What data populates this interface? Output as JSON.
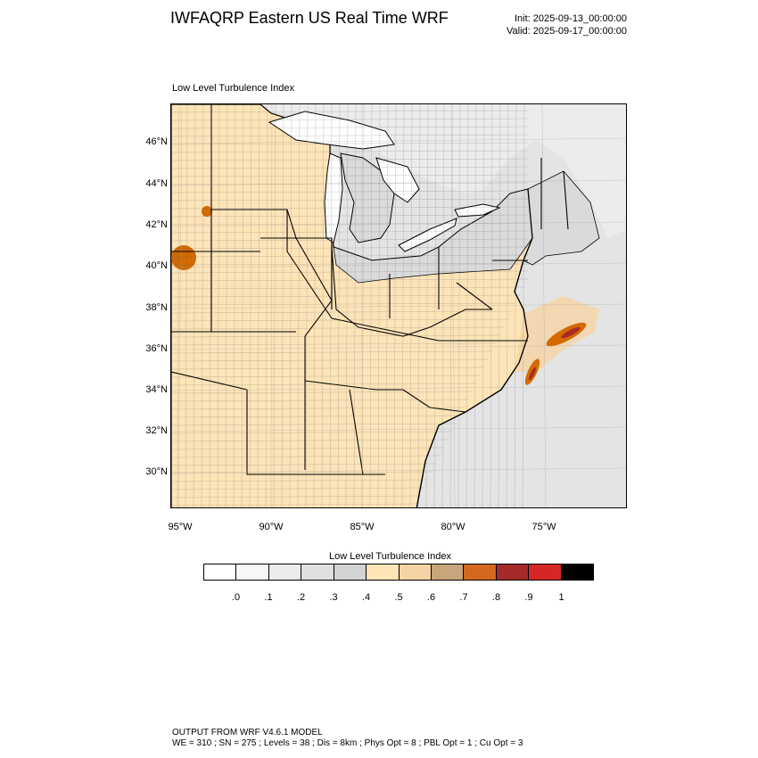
{
  "header": {
    "title": "IWFAQRP Eastern US Real Time WRF",
    "init": "Init: 2025-09-13_00:00:00",
    "valid": "Valid: 2025-09-17_00:00:00"
  },
  "map": {
    "subtitle": "Low Level Turbulence Index",
    "lat_labels": [
      "46°N",
      "44°N",
      "42°N",
      "40°N",
      "38°N",
      "36°N",
      "34°N",
      "32°N",
      "30°N"
    ],
    "lon_labels": [
      "95°W",
      "90°W",
      "85°W",
      "80°W",
      "75°W"
    ],
    "land_color": "#fde4b8",
    "ocean_color": "#e4e4e4",
    "lake_color": "#ffffff",
    "high_color": "#d46a00",
    "peak_color": "#a52a2a"
  },
  "legend": {
    "title": "Low Level Turbulence Index",
    "colors": [
      "#ffffff",
      "#f7f7f7",
      "#ececec",
      "#e0e0e0",
      "#d3d3d3",
      "#ffe4b5",
      "#f5d3a4",
      "#c9a57c",
      "#d2691e",
      "#a52a2a",
      "#d62728",
      "#000000"
    ],
    "ticks": [
      ".0",
      ".1",
      ".2",
      ".3",
      ".4",
      ".5",
      ".6",
      ".7",
      ".8",
      ".9",
      "1"
    ]
  },
  "footer": {
    "line1": "OUTPUT FROM WRF V4.6.1 MODEL",
    "line2": "WE = 310 ; SN = 275 ; Levels = 38 ; Dis = 8km ; Phys Opt = 8 ; PBL Opt = 1 ; Cu Opt = 3"
  }
}
